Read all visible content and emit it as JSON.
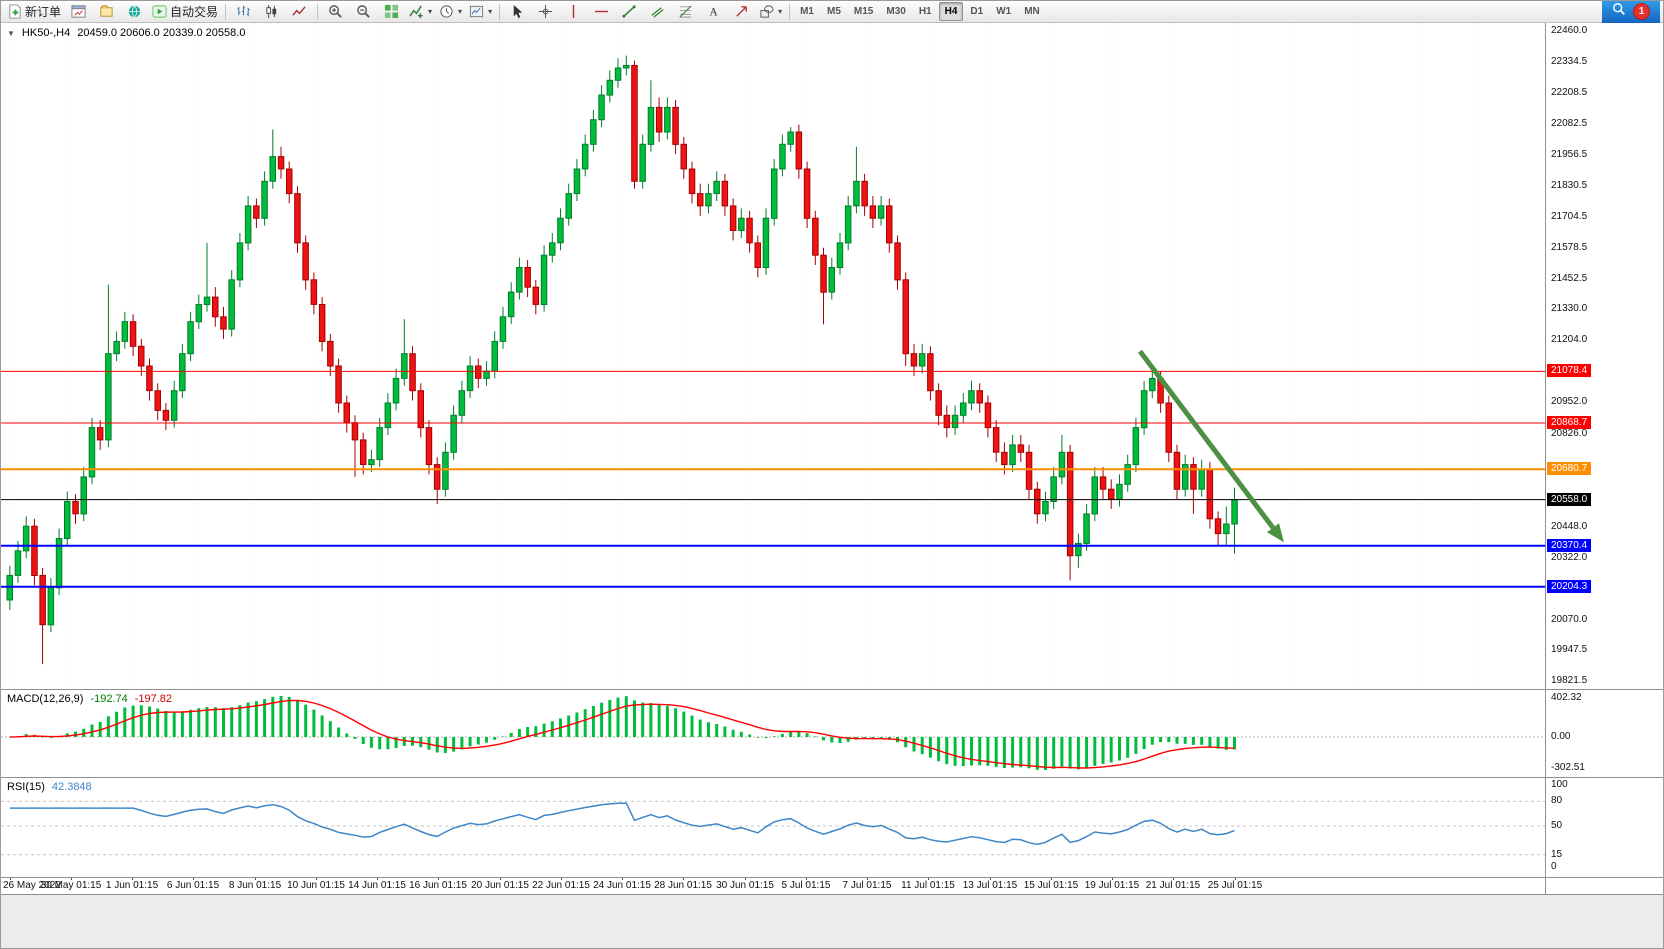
{
  "toolbar": {
    "new_order": "新订单",
    "autotrade": "自动交易",
    "timeframes": [
      "M1",
      "M5",
      "M15",
      "M30",
      "H1",
      "H4",
      "D1",
      "W1",
      "MN"
    ],
    "active_timeframe": "H4",
    "notification_badge": "1"
  },
  "chart_header": {
    "symbol": "HK50-,H4",
    "ohlc": "20459.0 20606.0 20339.0 20558.0"
  },
  "chart_data": {
    "type": "candlestick",
    "symbol": "HK50-",
    "timeframe": "H4",
    "last_ohlc": {
      "open": 20459.0,
      "high": 20606.0,
      "low": 20339.0,
      "close": 20558.0
    },
    "y_range": {
      "top": 22460.0,
      "bottom": 19821.5
    },
    "y_axis_labels": [
      22460.0,
      22334.5,
      22208.5,
      22082.5,
      21956.5,
      21830.5,
      21704.5,
      21578.5,
      21452.5,
      21330.0,
      21204.0,
      20952.0,
      20826.0,
      20448.0,
      20322.0,
      20070.0,
      19947.5,
      19821.5
    ],
    "price_lines": [
      {
        "price": 21078.4,
        "label": "21078.4",
        "color": "#ff0000",
        "width": 1
      },
      {
        "price": 20868.7,
        "label": "20868.7",
        "color": "#ff0000",
        "width": 1
      },
      {
        "price": 20680.7,
        "label": "20680.7",
        "color": "#ff8d00",
        "width": 2
      },
      {
        "price": 20558.0,
        "label": "20558.0",
        "color": "#000000",
        "width": 1
      },
      {
        "price": 20370.4,
        "label": "20370.4",
        "color": "#0000ff",
        "width": 2
      },
      {
        "price": 20204.3,
        "label": "20204.3",
        "color": "#0000ff",
        "width": 2
      }
    ],
    "trend_arrow": {
      "color": "#4c9141",
      "from": {
        "index": 137.5,
        "price": 21160
      },
      "to": {
        "index": 155,
        "price": 20385
      }
    },
    "colors": {
      "up_fill": "#00bd3e",
      "up_stroke": "#007d27",
      "down_fill": "#ef1414",
      "down_stroke": "#a40000",
      "grid": "#ededed",
      "background": "#ffffff"
    },
    "x_labels": [
      "26 May 2022",
      "30 May 01:15",
      "1 Jun 01:15",
      "6 Jun 01:15",
      "8 Jun 01:15",
      "10 Jun 01:15",
      "14 Jun 01:15",
      "16 Jun 01:15",
      "20 Jun 01:15",
      "22 Jun 01:15",
      "24 Jun 01:15",
      "28 Jun 01:15",
      "30 Jun 01:15",
      "5 Jul 01:15",
      "7 Jul 01:15",
      "11 Jul 01:15",
      "13 Jul 01:15",
      "15 Jul 01:15",
      "19 Jul 01:15",
      "21 Jul 01:15",
      "25 Jul 01:15"
    ],
    "candles": [
      [
        20150,
        20290,
        20110,
        20250
      ],
      [
        20250,
        20390,
        20220,
        20350
      ],
      [
        20350,
        20490,
        20320,
        20450
      ],
      [
        20450,
        20480,
        20210,
        20250
      ],
      [
        20250,
        20280,
        19890,
        20050
      ],
      [
        20050,
        20240,
        20020,
        20200
      ],
      [
        20200,
        20440,
        20170,
        20400
      ],
      [
        20400,
        20590,
        20370,
        20550
      ],
      [
        20550,
        20580,
        20460,
        20500
      ],
      [
        20500,
        20690,
        20470,
        20650
      ],
      [
        20650,
        20890,
        20620,
        20850
      ],
      [
        20850,
        20880,
        20760,
        20800
      ],
      [
        20800,
        21430,
        20770,
        21150
      ],
      [
        21150,
        21240,
        21120,
        21200
      ],
      [
        21200,
        21320,
        21170,
        21280
      ],
      [
        21280,
        21310,
        21140,
        21180
      ],
      [
        21180,
        21210,
        21060,
        21100
      ],
      [
        21100,
        21130,
        20960,
        21000
      ],
      [
        21000,
        21030,
        20880,
        20920
      ],
      [
        20920,
        20950,
        20840,
        20880
      ],
      [
        20880,
        21040,
        20850,
        21000
      ],
      [
        21000,
        21190,
        20970,
        21150
      ],
      [
        21150,
        21320,
        21120,
        21280
      ],
      [
        21280,
        21390,
        21250,
        21350
      ],
      [
        21350,
        21600,
        21320,
        21380
      ],
      [
        21380,
        21420,
        21260,
        21300
      ],
      [
        21300,
        21340,
        21210,
        21250
      ],
      [
        21250,
        21490,
        21220,
        21450
      ],
      [
        21450,
        21640,
        21420,
        21600
      ],
      [
        21600,
        21790,
        21570,
        21750
      ],
      [
        21750,
        21780,
        21660,
        21700
      ],
      [
        21700,
        21890,
        21670,
        21850
      ],
      [
        21850,
        22060,
        21820,
        21950
      ],
      [
        21950,
        21990,
        21860,
        21900
      ],
      [
        21900,
        21930,
        21760,
        21800
      ],
      [
        21800,
        21830,
        21560,
        21600
      ],
      [
        21600,
        21630,
        21410,
        21450
      ],
      [
        21450,
        21480,
        21310,
        21350
      ],
      [
        21350,
        21380,
        21160,
        21200
      ],
      [
        21200,
        21230,
        21060,
        21100
      ],
      [
        21100,
        21130,
        20910,
        20950
      ],
      [
        20950,
        20980,
        20830,
        20870
      ],
      [
        20870,
        20900,
        20650,
        20800
      ],
      [
        20800,
        20830,
        20660,
        20700
      ],
      [
        20700,
        20760,
        20670,
        20720
      ],
      [
        20720,
        20890,
        20690,
        20850
      ],
      [
        20850,
        20990,
        20820,
        20950
      ],
      [
        20950,
        21090,
        20920,
        21050
      ],
      [
        21050,
        21290,
        21020,
        21150
      ],
      [
        21150,
        21180,
        20960,
        21000
      ],
      [
        21000,
        21030,
        20810,
        20850
      ],
      [
        20850,
        20880,
        20660,
        20700
      ],
      [
        20700,
        20730,
        20540,
        20600
      ],
      [
        20600,
        20790,
        20570,
        20750
      ],
      [
        20750,
        20940,
        20720,
        20900
      ],
      [
        20900,
        21040,
        20870,
        21000
      ],
      [
        21000,
        21140,
        20970,
        21100
      ],
      [
        21100,
        21130,
        21010,
        21050
      ],
      [
        21050,
        21120,
        21020,
        21080
      ],
      [
        21080,
        21240,
        21050,
        21200
      ],
      [
        21200,
        21340,
        21170,
        21300
      ],
      [
        21300,
        21440,
        21270,
        21400
      ],
      [
        21400,
        21540,
        21370,
        21500
      ],
      [
        21500,
        21530,
        21380,
        21420
      ],
      [
        21420,
        21450,
        21310,
        21350
      ],
      [
        21350,
        21590,
        21320,
        21550
      ],
      [
        21550,
        21640,
        21520,
        21600
      ],
      [
        21600,
        21740,
        21570,
        21700
      ],
      [
        21700,
        21840,
        21670,
        21800
      ],
      [
        21800,
        21940,
        21770,
        21900
      ],
      [
        21900,
        22040,
        21870,
        22000
      ],
      [
        22000,
        22140,
        21970,
        22100
      ],
      [
        22100,
        22240,
        22070,
        22200
      ],
      [
        22200,
        22300,
        22170,
        22260
      ],
      [
        22260,
        22350,
        22230,
        22310
      ],
      [
        22310,
        22360,
        22280,
        22320
      ],
      [
        22320,
        22340,
        21820,
        21850
      ],
      [
        21850,
        22040,
        21820,
        22000
      ],
      [
        22000,
        22260,
        21970,
        22150
      ],
      [
        22150,
        22190,
        22010,
        22050
      ],
      [
        22050,
        22190,
        22020,
        22150
      ],
      [
        22150,
        22180,
        21960,
        22000
      ],
      [
        22000,
        22030,
        21860,
        21900
      ],
      [
        21900,
        21930,
        21760,
        21800
      ],
      [
        21800,
        21840,
        21710,
        21750
      ],
      [
        21750,
        21840,
        21720,
        21800
      ],
      [
        21800,
        21890,
        21770,
        21850
      ],
      [
        21850,
        21880,
        21710,
        21750
      ],
      [
        21750,
        21780,
        21610,
        21650
      ],
      [
        21650,
        21740,
        21620,
        21700
      ],
      [
        21700,
        21730,
        21560,
        21600
      ],
      [
        21600,
        21630,
        21460,
        21500
      ],
      [
        21500,
        21740,
        21470,
        21700
      ],
      [
        21700,
        21940,
        21670,
        21900
      ],
      [
        21900,
        22040,
        21870,
        22000
      ],
      [
        22000,
        22070,
        21970,
        22050
      ],
      [
        22050,
        22080,
        21860,
        21900
      ],
      [
        21900,
        21930,
        21660,
        21700
      ],
      [
        21700,
        21730,
        21510,
        21550
      ],
      [
        21550,
        21580,
        21270,
        21400
      ],
      [
        21400,
        21540,
        21370,
        21500
      ],
      [
        21500,
        21640,
        21470,
        21600
      ],
      [
        21600,
        21790,
        21570,
        21750
      ],
      [
        21750,
        21990,
        21720,
        21850
      ],
      [
        21850,
        21880,
        21710,
        21750
      ],
      [
        21750,
        21790,
        21660,
        21700
      ],
      [
        21700,
        21790,
        21670,
        21750
      ],
      [
        21750,
        21780,
        21560,
        21600
      ],
      [
        21600,
        21630,
        21410,
        21450
      ],
      [
        21450,
        21480,
        21100,
        21150
      ],
      [
        21150,
        21190,
        21060,
        21100
      ],
      [
        21100,
        21190,
        21070,
        21150
      ],
      [
        21150,
        21180,
        20960,
        21000
      ],
      [
        21000,
        21030,
        20860,
        20900
      ],
      [
        20900,
        20940,
        20810,
        20850
      ],
      [
        20850,
        20940,
        20820,
        20900
      ],
      [
        20900,
        20990,
        20870,
        20950
      ],
      [
        20950,
        21040,
        20920,
        21000
      ],
      [
        21000,
        21030,
        20910,
        20950
      ],
      [
        20950,
        20980,
        20810,
        20850
      ],
      [
        20850,
        20880,
        20710,
        20750
      ],
      [
        20750,
        20790,
        20660,
        20700
      ],
      [
        20700,
        20820,
        20670,
        20780
      ],
      [
        20780,
        20820,
        20710,
        20750
      ],
      [
        20750,
        20780,
        20560,
        20600
      ],
      [
        20600,
        20630,
        20460,
        20500
      ],
      [
        20500,
        20590,
        20470,
        20550
      ],
      [
        20550,
        20690,
        20520,
        20650
      ],
      [
        20650,
        20820,
        20620,
        20750
      ],
      [
        20750,
        20780,
        20230,
        20330
      ],
      [
        20330,
        20420,
        20280,
        20380
      ],
      [
        20380,
        20540,
        20350,
        20500
      ],
      [
        20500,
        20690,
        20470,
        20650
      ],
      [
        20650,
        20690,
        20560,
        20600
      ],
      [
        20600,
        20640,
        20520,
        20560
      ],
      [
        20560,
        20660,
        20530,
        20620
      ],
      [
        20620,
        20740,
        20590,
        20700
      ],
      [
        20700,
        20890,
        20670,
        20850
      ],
      [
        20850,
        21040,
        20820,
        21000
      ],
      [
        21000,
        21090,
        20970,
        21050
      ],
      [
        21050,
        21080,
        20910,
        20950
      ],
      [
        20950,
        20980,
        20710,
        20750
      ],
      [
        20750,
        20780,
        20560,
        20600
      ],
      [
        20600,
        20740,
        20570,
        20700
      ],
      [
        20700,
        20730,
        20500,
        20600
      ],
      [
        20600,
        20720,
        20570,
        20680
      ],
      [
        20680,
        20710,
        20440,
        20480
      ],
      [
        20480,
        20510,
        20370,
        20420
      ],
      [
        20420,
        20530,
        20370,
        20459
      ],
      [
        20459,
        20606,
        20339,
        20558
      ]
    ],
    "macd": {
      "label": "MACD(12,26,9)",
      "value_main": "-192.74",
      "value_signal": "-197.82",
      "params": {
        "fast": 12,
        "slow": 26,
        "signal": 9
      },
      "axis_labels": [
        "402.32",
        "0.00",
        "-302.51"
      ],
      "histogram_color": "#00bd3e",
      "signal_color": "#ff0000"
    },
    "rsi": {
      "label": "RSI(15)",
      "value": "42.3848",
      "period": 15,
      "axis_labels": [
        100,
        80,
        50,
        15,
        0
      ],
      "levels": [
        80,
        50,
        15
      ],
      "line_color": "#3e86c8"
    }
  }
}
